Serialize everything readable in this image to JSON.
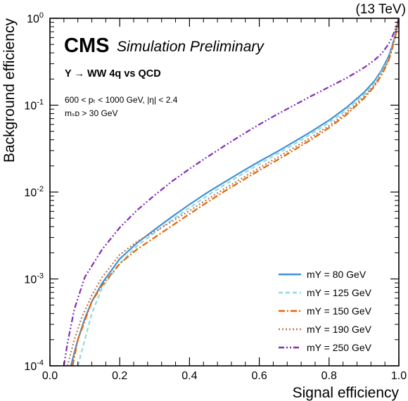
{
  "chart_data": {
    "type": "line",
    "energy_label": "(13 TeV)",
    "cms_label": "CMS",
    "cms_sublabel": "Simulation Preliminary",
    "process_label": "Y → WW 4q vs QCD",
    "selection_pt_label": "600 < pₜ < 1000 GeV, |η| < 2.4",
    "selection_msd_label": "mₛᴅ > 30 GeV",
    "xlabel": "Signal efficiency",
    "ylabel": "Background efficiency",
    "xlim": [
      0.0,
      1.0
    ],
    "ylim": [
      0.0001,
      1
    ],
    "yscale": "log",
    "x_ticks": [
      "0.0",
      "0.2",
      "0.4",
      "0.6",
      "0.8",
      "1.0"
    ],
    "y_tick_base": "10",
    "y_tick_exponents": [
      "-4",
      "-3",
      "-2",
      "-1",
      "0"
    ],
    "legend_position": "bottom-right",
    "grid": false,
    "series": [
      {
        "name": "mΥ = 80 GeV",
        "color": "#3f90da",
        "dash": "solid",
        "points": [
          [
            0.06,
            0.0001
          ],
          [
            0.08,
            0.0002
          ],
          [
            0.1,
            0.00035
          ],
          [
            0.12,
            0.00055
          ],
          [
            0.15,
            0.0009
          ],
          [
            0.2,
            0.0017
          ],
          [
            0.25,
            0.0026
          ],
          [
            0.3,
            0.0037
          ],
          [
            0.35,
            0.0052
          ],
          [
            0.4,
            0.0072
          ],
          [
            0.45,
            0.0098
          ],
          [
            0.5,
            0.013
          ],
          [
            0.55,
            0.0172
          ],
          [
            0.6,
            0.0225
          ],
          [
            0.65,
            0.029
          ],
          [
            0.7,
            0.038
          ],
          [
            0.75,
            0.05
          ],
          [
            0.8,
            0.067
          ],
          [
            0.85,
            0.094
          ],
          [
            0.9,
            0.14
          ],
          [
            0.93,
            0.19
          ],
          [
            0.95,
            0.25
          ],
          [
            0.97,
            0.36
          ],
          [
            0.98,
            0.47
          ],
          [
            0.99,
            0.65
          ],
          [
            1.0,
            1.0
          ]
        ]
      },
      {
        "name": "mΥ = 125 GeV",
        "color": "#92dadd",
        "dash": "dashed",
        "points": [
          [
            0.08,
            0.0001
          ],
          [
            0.1,
            0.0002
          ],
          [
            0.12,
            0.0004
          ],
          [
            0.15,
            0.0008
          ],
          [
            0.2,
            0.0015
          ],
          [
            0.25,
            0.0024
          ],
          [
            0.3,
            0.0034
          ],
          [
            0.35,
            0.0048
          ],
          [
            0.4,
            0.0066
          ],
          [
            0.45,
            0.009
          ],
          [
            0.5,
            0.0121
          ],
          [
            0.55,
            0.016
          ],
          [
            0.6,
            0.021
          ],
          [
            0.65,
            0.0272
          ],
          [
            0.7,
            0.0356
          ],
          [
            0.75,
            0.047
          ],
          [
            0.8,
            0.063
          ],
          [
            0.85,
            0.088
          ],
          [
            0.9,
            0.132
          ],
          [
            0.93,
            0.18
          ],
          [
            0.95,
            0.24
          ],
          [
            0.97,
            0.34
          ],
          [
            0.98,
            0.45
          ],
          [
            0.99,
            0.63
          ],
          [
            1.0,
            1.0
          ]
        ]
      },
      {
        "name": "mΥ = 150 GeV",
        "color": "#e76300",
        "dash": "dashdot",
        "points": [
          [
            0.065,
            0.0001
          ],
          [
            0.08,
            0.0002
          ],
          [
            0.1,
            0.00033
          ],
          [
            0.12,
            0.00055
          ],
          [
            0.15,
            0.00085
          ],
          [
            0.2,
            0.0015
          ],
          [
            0.25,
            0.0022
          ],
          [
            0.3,
            0.003
          ],
          [
            0.35,
            0.0041
          ],
          [
            0.4,
            0.0056
          ],
          [
            0.45,
            0.0076
          ],
          [
            0.5,
            0.0102
          ],
          [
            0.55,
            0.0135
          ],
          [
            0.6,
            0.0178
          ],
          [
            0.65,
            0.0232
          ],
          [
            0.7,
            0.0305
          ],
          [
            0.75,
            0.0405
          ],
          [
            0.8,
            0.055
          ],
          [
            0.85,
            0.078
          ],
          [
            0.9,
            0.12
          ],
          [
            0.93,
            0.165
          ],
          [
            0.95,
            0.22
          ],
          [
            0.97,
            0.32
          ],
          [
            0.98,
            0.43
          ],
          [
            0.99,
            0.62
          ],
          [
            1.0,
            1.0
          ]
        ]
      },
      {
        "name": "mΥ = 190 GeV",
        "color": "#b9774f",
        "dash": "dotted",
        "points": [
          [
            0.05,
            0.0001
          ],
          [
            0.07,
            0.0002
          ],
          [
            0.09,
            0.00035
          ],
          [
            0.12,
            0.00065
          ],
          [
            0.15,
            0.00105
          ],
          [
            0.2,
            0.0019
          ],
          [
            0.25,
            0.0027
          ],
          [
            0.3,
            0.0035
          ],
          [
            0.35,
            0.0046
          ],
          [
            0.4,
            0.0061
          ],
          [
            0.45,
            0.0082
          ],
          [
            0.5,
            0.0109
          ],
          [
            0.55,
            0.0144
          ],
          [
            0.6,
            0.019
          ],
          [
            0.65,
            0.0248
          ],
          [
            0.7,
            0.0325
          ],
          [
            0.75,
            0.043
          ],
          [
            0.8,
            0.058
          ],
          [
            0.85,
            0.082
          ],
          [
            0.9,
            0.125
          ],
          [
            0.93,
            0.17
          ],
          [
            0.95,
            0.23
          ],
          [
            0.97,
            0.33
          ],
          [
            0.98,
            0.44
          ],
          [
            0.99,
            0.62
          ],
          [
            1.0,
            1.0
          ]
        ]
      },
      {
        "name": "mΥ = 250 GeV",
        "color": "#832db6",
        "dash": "dashdotdot",
        "points": [
          [
            0.04,
            0.0001
          ],
          [
            0.05,
            0.00018
          ],
          [
            0.07,
            0.00045
          ],
          [
            0.1,
            0.00105
          ],
          [
            0.15,
            0.0022
          ],
          [
            0.2,
            0.0039
          ],
          [
            0.25,
            0.0062
          ],
          [
            0.3,
            0.0092
          ],
          [
            0.35,
            0.0133
          ],
          [
            0.4,
            0.0185
          ],
          [
            0.45,
            0.0252
          ],
          [
            0.5,
            0.034
          ],
          [
            0.55,
            0.0455
          ],
          [
            0.6,
            0.06
          ],
          [
            0.65,
            0.078
          ],
          [
            0.7,
            0.1
          ],
          [
            0.75,
            0.128
          ],
          [
            0.8,
            0.162
          ],
          [
            0.85,
            0.205
          ],
          [
            0.9,
            0.27
          ],
          [
            0.93,
            0.33
          ],
          [
            0.95,
            0.39
          ],
          [
            0.97,
            0.5
          ],
          [
            0.98,
            0.6
          ],
          [
            0.99,
            0.75
          ],
          [
            1.0,
            1.0
          ]
        ]
      }
    ]
  }
}
